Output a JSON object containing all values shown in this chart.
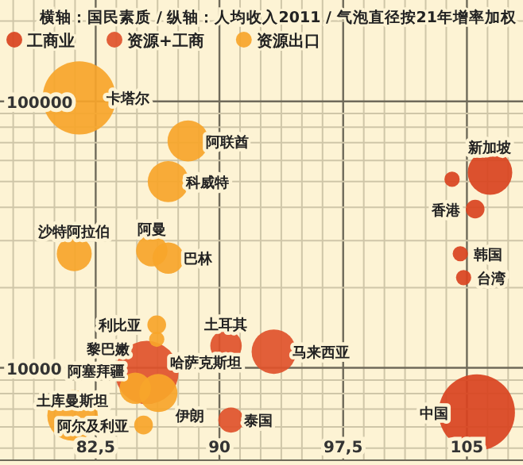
{
  "chart_data": {
    "type": "bubble",
    "title": "横轴：国民素质 / 纵轴：人均收入2011 / 气泡直径按21年增率加权",
    "log": "y",
    "grid": true,
    "legend": "top left",
    "xlim": [
      76.7,
      108.4
    ],
    "ylim": [
      4500,
      240000
    ],
    "xticks": [
      {
        "value": 77.5,
        "label": null
      },
      {
        "value": 78.75,
        "label": null
      },
      {
        "value": 80,
        "label": null
      },
      {
        "value": 81.25,
        "label": null
      },
      {
        "value": 82.5,
        "label": "82,5"
      },
      {
        "value": 83.75,
        "label": null
      },
      {
        "value": 85,
        "label": null
      },
      {
        "value": 86.25,
        "label": null
      },
      {
        "value": 87.5,
        "label": null
      },
      {
        "value": 88.75,
        "label": null
      },
      90,
      {
        "value": 91.25,
        "label": null
      },
      {
        "value": 92.5,
        "label": null
      },
      {
        "value": 93.75,
        "label": null
      },
      {
        "value": 95,
        "label": null
      },
      {
        "value": 96.25,
        "label": null
      },
      {
        "value": 97.5,
        "label": "97,5"
      },
      {
        "value": 98.75,
        "label": null
      },
      {
        "value": 100,
        "label": null
      },
      {
        "value": 101.25,
        "label": null
      },
      {
        "value": 102.5,
        "label": null
      },
      {
        "value": 103.75,
        "label": null
      },
      105,
      {
        "value": 106.25,
        "label": null
      },
      {
        "value": 107.5,
        "label": null
      }
    ],
    "yticks": [
      {
        "value": 5000,
        "label": null
      },
      {
        "value": 6000,
        "label": null
      },
      {
        "value": 7000,
        "label": null
      },
      {
        "value": 8000,
        "label": null
      },
      {
        "value": 9000,
        "label": null
      },
      10000,
      {
        "value": 20000,
        "label": null
      },
      {
        "value": 30000,
        "label": null
      },
      {
        "value": 40000,
        "label": null
      },
      {
        "value": 50000,
        "label": null
      },
      {
        "value": 60000,
        "label": null
      },
      {
        "value": 70000,
        "label": null
      },
      {
        "value": 80000,
        "label": null
      },
      {
        "value": 90000,
        "label": null
      },
      100000,
      {
        "value": 200000,
        "label": null
      }
    ],
    "series": [
      {
        "name": "工商业",
        "color": "#d9431f",
        "x": [
          105.6,
          104.6,
          104.8,
          105.5,
          106.4,
          104.1
        ],
        "values": [
          6800,
          26800,
          21800,
          39400,
          54000,
          51000
        ],
        "sizes": [
          1,
          0.04,
          0.04,
          0.06,
          0.34,
          0.04
        ]
      },
      {
        "name": "资源+工商",
        "color": "#e0532b",
        "x": [
          93.3,
          90.4,
          90.7,
          85.6
        ],
        "values": [
          11500,
          12100,
          6370,
          9600
        ],
        "sizes": [
          0.34,
          0.17,
          0.11,
          0.69
        ]
      },
      {
        "name": "资源出口",
        "color": "#f7a52a",
        "x": [
          81.5,
          88.1,
          86.9,
          81.2,
          85.9,
          86.9,
          86.2,
          86.2,
          84.9,
          86.3,
          81.1,
          85.4
        ],
        "values": [
          103000,
          71000,
          50000,
          26800,
          27500,
          25800,
          14500,
          12800,
          8380,
          8040,
          6620,
          6100
        ],
        "sizes": [
          0.92,
          0.29,
          0.29,
          0.21,
          0.17,
          0.17,
          0.06,
          0.04,
          0.17,
          0.25,
          0.44,
          0.06
        ]
      }
    ],
    "annotations": [
      {
        "text": "中国",
        "x": 105.6,
        "y": 6800
      },
      {
        "text": "韩国",
        "x": 104.6,
        "y": 26800
      },
      {
        "text": "台湾",
        "x": 104.8,
        "y": 21800
      },
      {
        "text": "香港",
        "x": 105.5,
        "y": 39400
      },
      {
        "text": "新加坡",
        "x": 106.4,
        "y": 54000
      },
      {
        "text": "马来西亚",
        "x": 93.3,
        "y": 11500
      },
      {
        "text": "土耳其",
        "x": 90.4,
        "y": 12100
      },
      {
        "text": "泰国",
        "x": 90.7,
        "y": 6370
      },
      {
        "text": "黎巴嫩",
        "x": 85.6,
        "y": 9600
      },
      {
        "text": "卡塔尔",
        "x": 81.5,
        "y": 103000
      },
      {
        "text": "阿联酋",
        "x": 88.1,
        "y": 71000
      },
      {
        "text": "科威特",
        "x": 86.9,
        "y": 50000
      },
      {
        "text": "沙特阿拉伯",
        "x": 81.2,
        "y": 26800
      },
      {
        "text": "阿曼",
        "x": 85.9,
        "y": 27500
      },
      {
        "text": "巴林",
        "x": 86.9,
        "y": 25800
      },
      {
        "text": "利比亚",
        "x": 86.2,
        "y": 14500
      },
      {
        "text": "哈萨克斯坦",
        "x": 86.2,
        "y": 12800
      },
      {
        "text": "阿塞拜疆",
        "x": 84.9,
        "y": 8380
      },
      {
        "text": "伊朗",
        "x": 86.3,
        "y": 8040
      },
      {
        "text": "土库曼斯坦",
        "x": 81.1,
        "y": 6620
      },
      {
        "text": "阿尔及利亚",
        "x": 85.4,
        "y": 6100
      }
    ]
  }
}
